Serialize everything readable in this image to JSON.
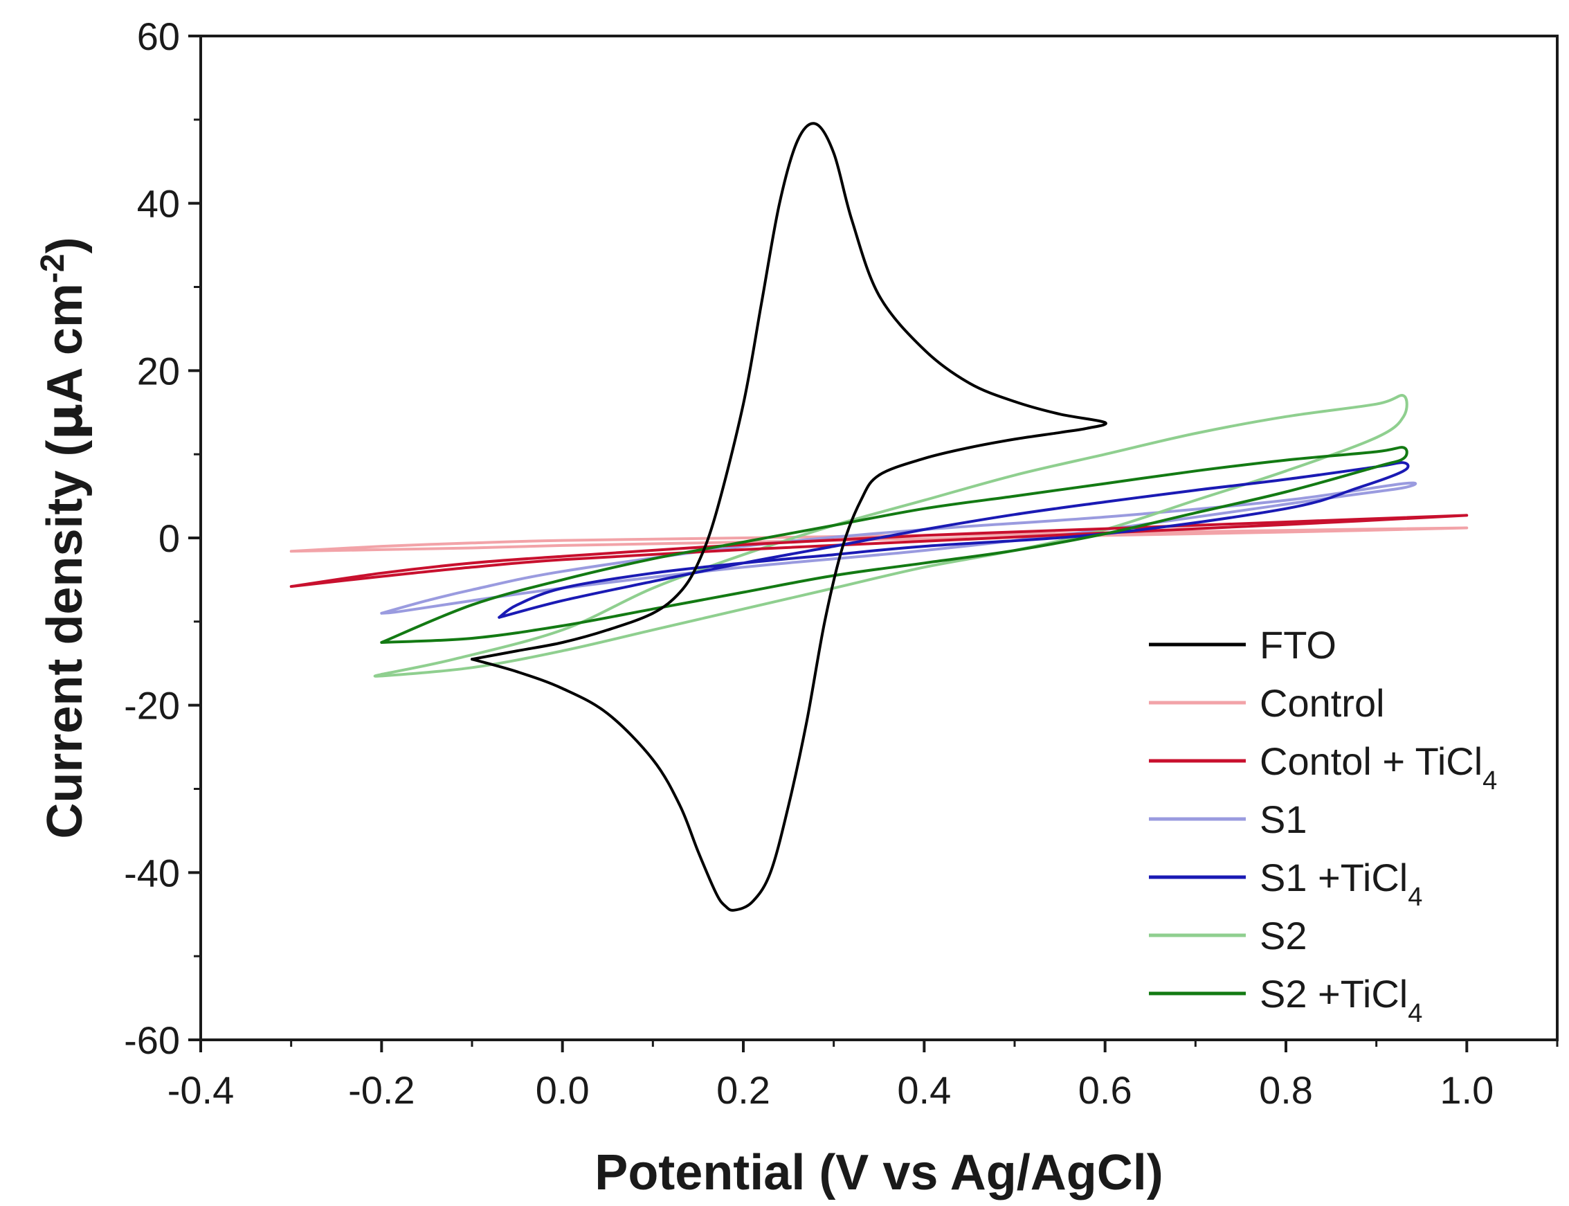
{
  "chart_data": {
    "type": "line",
    "title": "",
    "xlabel": "Potential (V vs Ag/AgCl)",
    "ylabel": {
      "prefix": "Current density (",
      "mu": "μ",
      "mid": "A cm",
      "sup": "-2",
      "suffix": ")"
    },
    "xlim": [
      -0.4,
      1.1
    ],
    "ylim": [
      -60,
      60
    ],
    "xticks": [
      -0.4,
      -0.2,
      0.0,
      0.2,
      0.4,
      0.6,
      0.8,
      1.0
    ],
    "xtick_labels": [
      "-0.4",
      "-0.2",
      "0.0",
      "0.2",
      "0.4",
      "0.6",
      "0.8",
      "1.0"
    ],
    "yticks": [
      -60,
      -40,
      -20,
      0,
      20,
      40,
      60
    ],
    "ytick_labels": [
      "-60",
      "-40",
      "-20",
      "0",
      "20",
      "40",
      "60"
    ],
    "grid": false,
    "legend_position": "bottom-right",
    "series": [
      {
        "name": "FTO",
        "label_main": "FTO",
        "label_sub": "",
        "color": "#000000",
        "x": [
          -0.1,
          -0.05,
          0.0,
          0.05,
          0.1,
          0.13,
          0.15,
          0.17,
          0.2,
          0.22,
          0.24,
          0.26,
          0.28,
          0.3,
          0.32,
          0.35,
          0.4,
          0.45,
          0.5,
          0.55,
          0.6,
          0.58,
          0.55,
          0.5,
          0.45,
          0.4,
          0.35,
          0.33,
          0.31,
          0.29,
          0.27,
          0.25,
          0.23,
          0.21,
          0.19,
          0.18,
          0.17,
          0.15,
          0.13,
          0.1,
          0.05,
          0.0,
          -0.05,
          -0.1
        ],
        "y": [
          -14.5,
          -13.5,
          -12.5,
          -11.0,
          -9.0,
          -6.5,
          -3.0,
          3.0,
          16.0,
          28.0,
          40.0,
          47.5,
          49.5,
          46.0,
          38.0,
          29.0,
          22.5,
          18.5,
          16.3,
          14.8,
          13.8,
          13.1,
          12.6,
          11.8,
          10.8,
          9.5,
          7.5,
          4.5,
          -1.0,
          -10.0,
          -22.0,
          -32.0,
          -40.0,
          -43.5,
          -44.5,
          -44.0,
          -42.5,
          -37.5,
          -32.0,
          -26.5,
          -21.0,
          -18.0,
          -16.0,
          -14.5
        ]
      },
      {
        "name": "Control",
        "label_main": "Control",
        "label_sub": "",
        "color": "#f2a3a8",
        "x": [
          -0.3,
          -0.2,
          -0.1,
          0.0,
          0.2,
          0.4,
          0.6,
          0.8,
          1.0,
          0.8,
          0.6,
          0.4,
          0.2,
          0.0,
          -0.1,
          -0.2,
          -0.3
        ],
        "y": [
          -1.6,
          -1.0,
          -0.6,
          -0.3,
          0.0,
          0.3,
          0.6,
          0.9,
          1.2,
          0.7,
          0.3,
          -0.1,
          -0.5,
          -0.9,
          -1.2,
          -1.4,
          -1.6
        ]
      },
      {
        "name": "Contol + TiCl4",
        "label_main": "Contol + TiCl",
        "label_sub": "4",
        "color": "#c8102e",
        "x": [
          -0.3,
          -0.2,
          -0.1,
          0.0,
          0.2,
          0.4,
          0.6,
          0.8,
          1.0,
          0.8,
          0.6,
          0.4,
          0.2,
          0.0,
          -0.1,
          -0.2,
          -0.3
        ],
        "y": [
          -5.8,
          -4.2,
          -3.0,
          -2.2,
          -0.8,
          0.3,
          1.1,
          1.9,
          2.7,
          1.6,
          0.6,
          -0.4,
          -1.4,
          -2.6,
          -3.5,
          -4.6,
          -5.8
        ]
      },
      {
        "name": "S1",
        "label_main": "S1",
        "label_sub": "",
        "color": "#9a9bdf",
        "x": [
          -0.2,
          -0.15,
          -0.1,
          0.0,
          0.2,
          0.4,
          0.6,
          0.8,
          0.93,
          0.93,
          0.85,
          0.6,
          0.4,
          0.2,
          0.0,
          -0.1,
          -0.18,
          -0.2
        ],
        "y": [
          -9.0,
          -7.5,
          -6.2,
          -4.0,
          -1.0,
          1.0,
          2.5,
          4.5,
          6.5,
          6.0,
          4.8,
          1.0,
          -1.5,
          -3.5,
          -6.0,
          -7.5,
          -8.8,
          -9.0
        ]
      },
      {
        "name": "S1 +TiCl4",
        "label_main": "S1 +TiCl",
        "label_sub": "4",
        "color": "#1a1ab4",
        "x": [
          -0.07,
          0.0,
          0.1,
          0.2,
          0.3,
          0.4,
          0.5,
          0.6,
          0.7,
          0.8,
          0.9,
          0.93,
          0.93,
          0.88,
          0.8,
          0.6,
          0.4,
          0.3,
          0.2,
          0.1,
          0.0,
          -0.05,
          -0.07
        ],
        "y": [
          -9.5,
          -7.5,
          -5.2,
          -3.0,
          -1.0,
          1.0,
          2.8,
          4.3,
          5.7,
          7.0,
          8.5,
          9.0,
          8.0,
          6.0,
          3.5,
          0.5,
          -1.0,
          -2.0,
          -3.0,
          -4.2,
          -6.0,
          -8.0,
          -9.5
        ]
      },
      {
        "name": "S2",
        "label_main": "S2",
        "label_sub": "",
        "color": "#8fcf8f",
        "x": [
          -0.2,
          -0.12,
          0.0,
          0.1,
          0.2,
          0.3,
          0.4,
          0.5,
          0.6,
          0.7,
          0.8,
          0.9,
          0.93,
          0.93,
          0.9,
          0.8,
          0.7,
          0.6,
          0.5,
          0.4,
          0.3,
          0.2,
          0.1,
          0.0,
          -0.1,
          -0.2,
          -0.2
        ],
        "y": [
          -16.3,
          -14.5,
          -11.0,
          -6.0,
          -2.0,
          1.5,
          4.5,
          7.5,
          10.0,
          12.5,
          14.5,
          16.0,
          17.0,
          14.5,
          12.0,
          8.0,
          4.5,
          1.0,
          -1.5,
          -3.5,
          -6.0,
          -8.5,
          -11.0,
          -13.5,
          -15.5,
          -16.5,
          -16.3
        ]
      },
      {
        "name": "S2 +TiCl4",
        "label_main": "S2 +TiCl",
        "label_sub": "4",
        "color": "#137a13",
        "x": [
          -0.2,
          -0.1,
          0.0,
          0.1,
          0.2,
          0.3,
          0.4,
          0.5,
          0.6,
          0.7,
          0.8,
          0.9,
          0.93,
          0.93,
          0.9,
          0.8,
          0.7,
          0.6,
          0.5,
          0.4,
          0.3,
          0.2,
          0.1,
          0.0,
          -0.1,
          -0.2
        ],
        "y": [
          -12.5,
          -8.0,
          -5.0,
          -2.5,
          -0.5,
          1.5,
          3.5,
          5.0,
          6.5,
          8.0,
          9.3,
          10.3,
          10.8,
          9.5,
          8.5,
          5.5,
          3.0,
          0.5,
          -1.5,
          -3.0,
          -4.5,
          -6.5,
          -8.5,
          -10.5,
          -12.0,
          -12.5
        ]
      }
    ]
  }
}
